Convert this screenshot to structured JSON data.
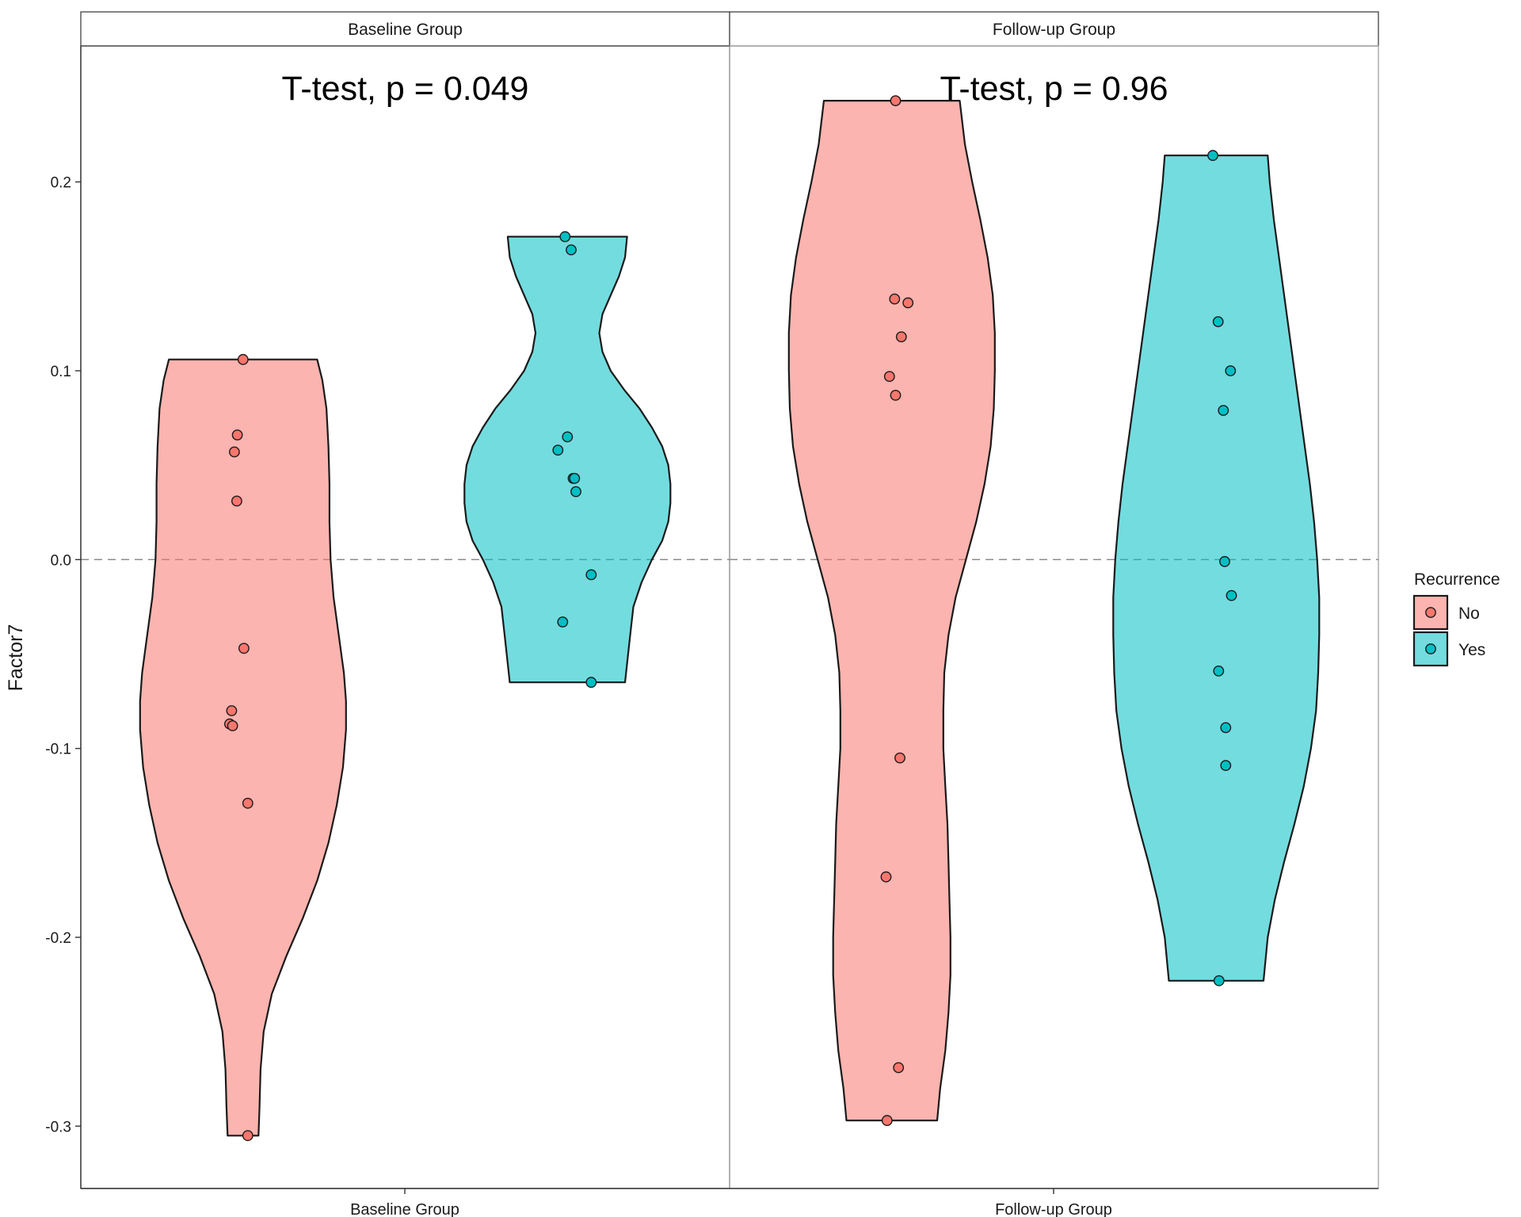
{
  "chart_data": {
    "type": "violin",
    "ylabel": "Factor7",
    "yticks": [
      -0.3,
      -0.2,
      -0.1,
      0.0,
      0.1,
      0.2
    ],
    "ytick_labels": [
      "-0.3",
      "-0.2",
      "-0.1",
      "0.0",
      "0.1",
      "0.2"
    ],
    "ylim": [
      -0.333,
      0.272
    ],
    "reference_line": 0.0,
    "grid": false,
    "legend": {
      "title": "Recurrence",
      "placement": "right",
      "entries": [
        {
          "name": "No",
          "fill": "#F8766D",
          "point": "#F8766D"
        },
        {
          "name": "Yes",
          "fill": "#00BFC4",
          "point": "#00BFC4"
        }
      ]
    },
    "colors": {
      "No": "#F8766D",
      "Yes": "#00BFC4",
      "violin_stroke": "#1a1a1a",
      "ref_line": "#8c8c8c"
    },
    "panels": [
      {
        "strip_label": "Baseline Group",
        "x_tick_label": "Baseline Group",
        "annotation": "T-test, p = 0.049",
        "groups": [
          {
            "name": "No",
            "points": [
              0.106,
              0.066,
              0.057,
              0.031,
              -0.047,
              -0.08,
              -0.087,
              -0.088,
              -0.129,
              -0.305
            ],
            "profile": [
              [
                -0.305,
                0.15
              ],
              [
                -0.29,
                0.16
              ],
              [
                -0.27,
                0.17
              ],
              [
                -0.25,
                0.2
              ],
              [
                -0.23,
                0.28
              ],
              [
                -0.21,
                0.42
              ],
              [
                -0.19,
                0.58
              ],
              [
                -0.17,
                0.72
              ],
              [
                -0.15,
                0.83
              ],
              [
                -0.13,
                0.91
              ],
              [
                -0.11,
                0.97
              ],
              [
                -0.09,
                1.0
              ],
              [
                -0.075,
                1.0
              ],
              [
                -0.06,
                0.98
              ],
              [
                -0.04,
                0.93
              ],
              [
                -0.02,
                0.88
              ],
              [
                0.0,
                0.85
              ],
              [
                0.02,
                0.84
              ],
              [
                0.04,
                0.84
              ],
              [
                0.06,
                0.83
              ],
              [
                0.08,
                0.81
              ],
              [
                0.095,
                0.77
              ],
              [
                0.106,
                0.72
              ]
            ],
            "jitter": [
              0.0,
              -0.12,
              -0.18,
              -0.13,
              0.02,
              -0.24,
              -0.28,
              -0.22,
              0.1,
              0.1
            ]
          },
          {
            "name": "Yes",
            "points": [
              0.171,
              0.164,
              0.065,
              0.058,
              0.043,
              0.043,
              0.036,
              -0.008,
              -0.033,
              -0.065
            ],
            "profile": [
              [
                -0.065,
                0.56
              ],
              [
                -0.055,
                0.58
              ],
              [
                -0.04,
                0.61
              ],
              [
                -0.025,
                0.64
              ],
              [
                -0.012,
                0.72
              ],
              [
                0.0,
                0.82
              ],
              [
                0.01,
                0.92
              ],
              [
                0.02,
                0.98
              ],
              [
                0.03,
                1.0
              ],
              [
                0.04,
                1.0
              ],
              [
                0.05,
                0.98
              ],
              [
                0.06,
                0.92
              ],
              [
                0.07,
                0.82
              ],
              [
                0.08,
                0.7
              ],
              [
                0.09,
                0.55
              ],
              [
                0.1,
                0.42
              ],
              [
                0.11,
                0.34
              ],
              [
                0.12,
                0.31
              ],
              [
                0.13,
                0.34
              ],
              [
                0.14,
                0.42
              ],
              [
                0.15,
                0.5
              ],
              [
                0.16,
                0.56
              ],
              [
                0.171,
                0.58
              ]
            ],
            "jitter": [
              -0.05,
              0.08,
              0.0,
              -0.2,
              0.12,
              0.15,
              0.18,
              0.5,
              -0.1,
              0.5
            ]
          }
        ]
      },
      {
        "strip_label": "Follow-up Group",
        "x_tick_label": "Follow-up Group",
        "annotation": "T-test, p = 0.96",
        "groups": [
          {
            "name": "No",
            "points": [
              0.243,
              0.138,
              0.136,
              0.118,
              0.097,
              0.087,
              -0.105,
              -0.168,
              -0.269,
              -0.297
            ],
            "profile": [
              [
                -0.297,
                0.44
              ],
              [
                -0.28,
                0.47
              ],
              [
                -0.26,
                0.52
              ],
              [
                -0.24,
                0.55
              ],
              [
                -0.22,
                0.57
              ],
              [
                -0.2,
                0.57
              ],
              [
                -0.18,
                0.56
              ],
              [
                -0.16,
                0.55
              ],
              [
                -0.14,
                0.54
              ],
              [
                -0.12,
                0.52
              ],
              [
                -0.1,
                0.5
              ],
              [
                -0.08,
                0.5
              ],
              [
                -0.06,
                0.51
              ],
              [
                -0.04,
                0.55
              ],
              [
                -0.02,
                0.62
              ],
              [
                0.0,
                0.72
              ],
              [
                0.02,
                0.82
              ],
              [
                0.04,
                0.9
              ],
              [
                0.06,
                0.96
              ],
              [
                0.08,
                0.99
              ],
              [
                0.1,
                1.0
              ],
              [
                0.12,
                1.0
              ],
              [
                0.14,
                0.98
              ],
              [
                0.16,
                0.93
              ],
              [
                0.18,
                0.86
              ],
              [
                0.2,
                0.78
              ],
              [
                0.22,
                0.71
              ],
              [
                0.243,
                0.66
              ]
            ],
            "jitter": [
              0.08,
              0.06,
              0.34,
              0.2,
              -0.05,
              0.08,
              0.17,
              -0.12,
              0.14,
              -0.1
            ]
          },
          {
            "name": "Yes",
            "points": [
              0.214,
              0.126,
              0.1,
              0.079,
              -0.001,
              -0.019,
              -0.059,
              -0.089,
              -0.109,
              -0.223
            ],
            "profile": [
              [
                -0.223,
                0.46
              ],
              [
                -0.2,
                0.5
              ],
              [
                -0.18,
                0.57
              ],
              [
                -0.16,
                0.66
              ],
              [
                -0.14,
                0.76
              ],
              [
                -0.12,
                0.85
              ],
              [
                -0.1,
                0.92
              ],
              [
                -0.08,
                0.97
              ],
              [
                -0.06,
                0.99
              ],
              [
                -0.04,
                1.0
              ],
              [
                -0.02,
                1.0
              ],
              [
                0.0,
                0.98
              ],
              [
                0.02,
                0.95
              ],
              [
                0.04,
                0.91
              ],
              [
                0.06,
                0.86
              ],
              [
                0.08,
                0.81
              ],
              [
                0.1,
                0.76
              ],
              [
                0.12,
                0.71
              ],
              [
                0.14,
                0.66
              ],
              [
                0.16,
                0.61
              ],
              [
                0.18,
                0.56
              ],
              [
                0.2,
                0.52
              ],
              [
                0.214,
                0.5
              ]
            ],
            "jitter": [
              -0.07,
              0.04,
              0.3,
              0.15,
              0.18,
              0.32,
              0.05,
              0.2,
              0.2,
              0.06
            ]
          }
        ]
      }
    ]
  }
}
